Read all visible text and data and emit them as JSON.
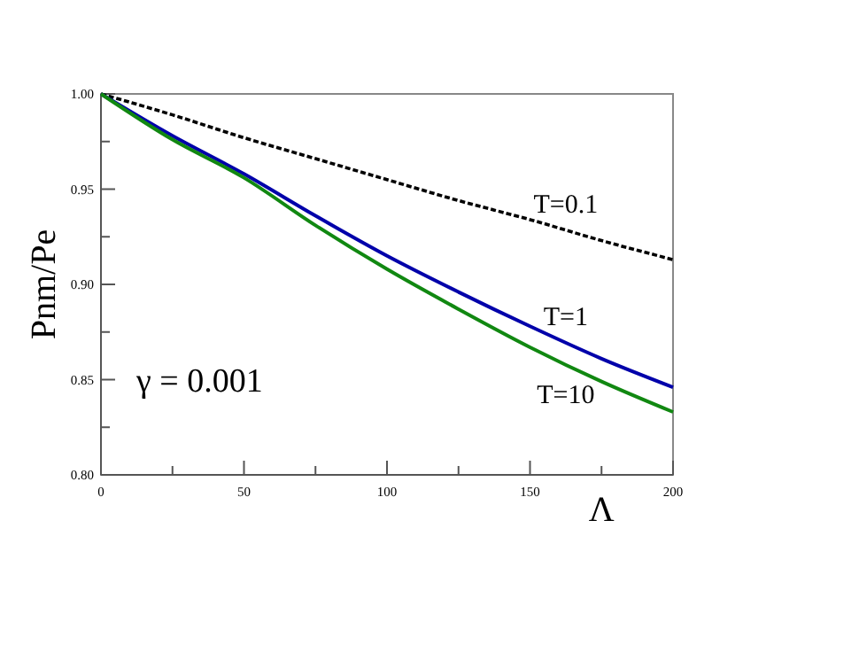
{
  "chart_data": {
    "type": "line",
    "xlabel": "Λ",
    "ylabel": "Pnm/Pe",
    "x": [
      0,
      25,
      50,
      75,
      100,
      125,
      150,
      175,
      200
    ],
    "series": [
      {
        "name": "T=0.1",
        "color": "#000000",
        "line_style": "dashed",
        "values": [
          1,
          0.989,
          0.977,
          0.966,
          0.955,
          0.944,
          0.934,
          0.923,
          0.913
        ]
      },
      {
        "name": "T=1",
        "color": "#0000aa",
        "values": [
          1,
          0.978,
          0.958,
          0.936,
          0.915,
          0.896,
          0.878,
          0.861,
          0.846
        ]
      },
      {
        "name": "T=10",
        "color": "#118811",
        "values": [
          1,
          0.976,
          0.956,
          0.931,
          0.908,
          0.887,
          0.867,
          0.849,
          0.833
        ]
      }
    ],
    "xlim": [
      0,
      200
    ],
    "ylim": [
      0.8,
      1
    ],
    "xticks": [
      0,
      {
        "value": 25,
        "label": null
      },
      50,
      {
        "value": 75,
        "label": null
      },
      100,
      {
        "value": 125,
        "label": null
      },
      150,
      {
        "value": 175,
        "label": null
      },
      200
    ],
    "yticks": [
      {
        "value": 0.8,
        "label": "0.80"
      },
      {
        "value": 0.825,
        "label": null
      },
      {
        "value": 0.85,
        "label": "0.85"
      },
      {
        "value": 0.875,
        "label": null
      },
      {
        "value": 0.9,
        "label": "0.90"
      },
      {
        "value": 0.925,
        "label": null
      },
      {
        "value": 0.95,
        "label": "0.95"
      },
      {
        "value": 0.975,
        "label": null
      },
      {
        "value": 1,
        "label": "1.00"
      }
    ],
    "annotations": [
      "γ = 0.001"
    ],
    "grid": false,
    "marker": "none"
  }
}
